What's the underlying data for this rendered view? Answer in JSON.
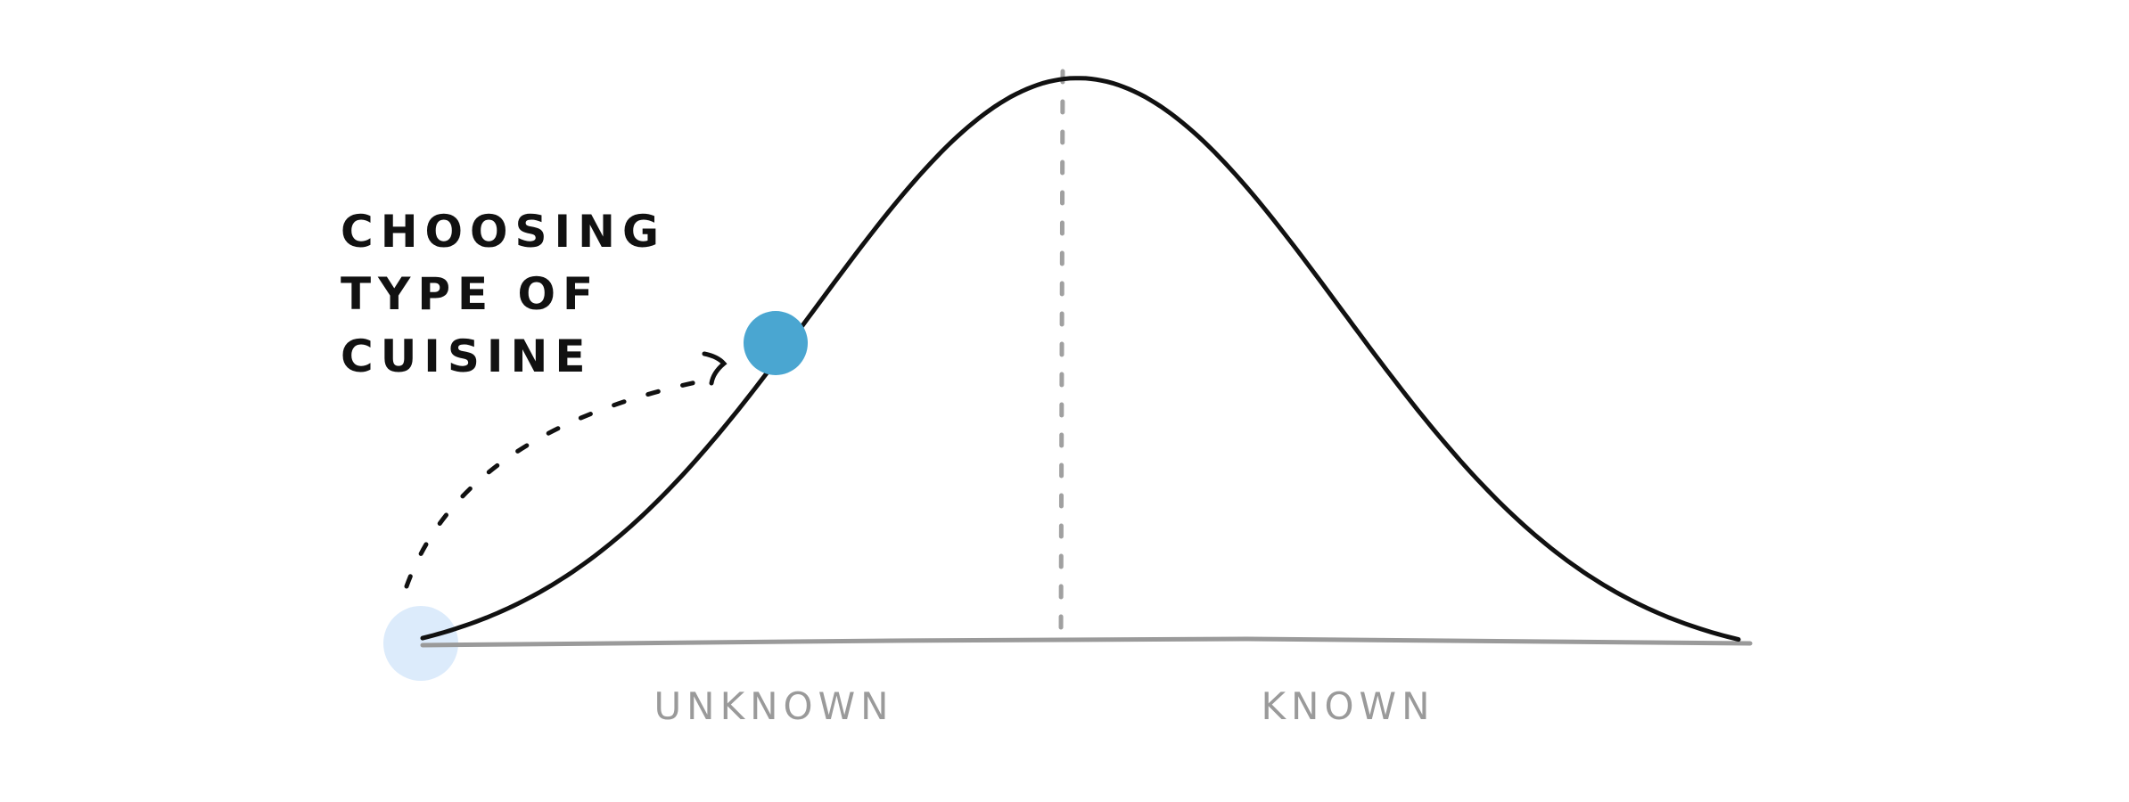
{
  "diagram": {
    "type": "hill-chart",
    "note": [
      "CHOOSING",
      "TYPE OF",
      "CUISINE"
    ],
    "labels": {
      "left": "UNKNOWN",
      "right": "KNOWN"
    },
    "item": {
      "start_position": 0.0,
      "current_position": 0.27
    },
    "colors": {
      "curve": "#111111",
      "baseline": "#9a9a9a",
      "divider": "#a0a0a0",
      "dot": "#4aa6d1",
      "start_dot": "#dcebfb",
      "arrow": "#111111",
      "labels": "#9a9a9a"
    }
  }
}
